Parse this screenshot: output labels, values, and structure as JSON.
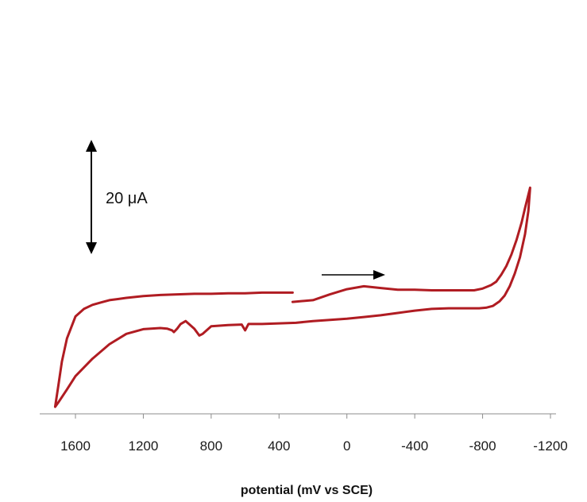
{
  "chart_data": {
    "type": "line",
    "xlabel": "potential (mV vs SCE)",
    "x_axis_reversed": true,
    "xlim": [
      1800,
      -1300
    ],
    "x_ticks": [
      1600,
      1200,
      800,
      400,
      0,
      -400,
      -800,
      -1200
    ],
    "x_tick_labels": [
      "1600",
      "1200",
      "800",
      "400",
      "0",
      "-400",
      "-800",
      "-1200"
    ],
    "scale_bar_label": "20 μA",
    "scale_bar_value_uA": 20,
    "scan_direction": "to more negative potential",
    "series": [
      {
        "color": "#b01c22",
        "x": [
          320,
          200,
          100,
          0,
          -100,
          -200,
          -300,
          -400,
          -500,
          -600,
          -700,
          -750,
          -800,
          -850,
          -880,
          -910,
          -940,
          -970,
          -1000,
          -1030,
          -1050,
          -1080,
          -1070,
          -1050,
          -1020,
          -990,
          -960,
          -930,
          -900,
          -860,
          -820,
          -780,
          -700,
          -600,
          -500,
          -400,
          -300,
          -200,
          -100,
          0,
          100,
          200,
          300,
          400,
          500,
          580,
          600,
          620,
          700,
          800,
          850,
          870,
          900,
          950,
          980,
          1000,
          1020,
          1030,
          1060,
          1100,
          1200,
          1300,
          1400,
          1500,
          1600,
          1650,
          1700,
          1720,
          1700,
          1680,
          1650,
          1600,
          1550,
          1500,
          1450,
          1400,
          1350,
          1300,
          1200,
          1100,
          1000,
          900,
          800,
          700,
          600,
          500,
          400,
          320
        ],
        "y": [
          -0.7,
          -0.4,
          0.6,
          1.5,
          2.0,
          1.7,
          1.4,
          1.4,
          1.3,
          1.3,
          1.3,
          1.3,
          1.6,
          2.2,
          2.8,
          4.0,
          5.5,
          7.5,
          10.0,
          13.0,
          15.5,
          19.0,
          15.0,
          11.0,
          7.0,
          4.2,
          2.0,
          0.4,
          -0.6,
          -1.4,
          -1.7,
          -1.8,
          -1.8,
          -1.8,
          -1.9,
          -2.2,
          -2.6,
          -3.0,
          -3.3,
          -3.6,
          -3.8,
          -4.0,
          -4.3,
          -4.4,
          -4.5,
          -4.5,
          -5.6,
          -4.6,
          -4.7,
          -4.9,
          -6.2,
          -6.5,
          -5.3,
          -4.0,
          -4.5,
          -5.3,
          -5.9,
          -5.6,
          -5.3,
          -5.2,
          -5.4,
          -6.2,
          -8.0,
          -10.5,
          -13.5,
          -15.8,
          -18.0,
          -18.8,
          -15.0,
          -11.0,
          -7.0,
          -3.2,
          -1.9,
          -1.2,
          -0.8,
          -0.4,
          -0.2,
          0.0,
          0.3,
          0.5,
          0.6,
          0.7,
          0.7,
          0.8,
          0.8,
          0.9,
          0.9,
          0.9
        ]
      }
    ]
  }
}
